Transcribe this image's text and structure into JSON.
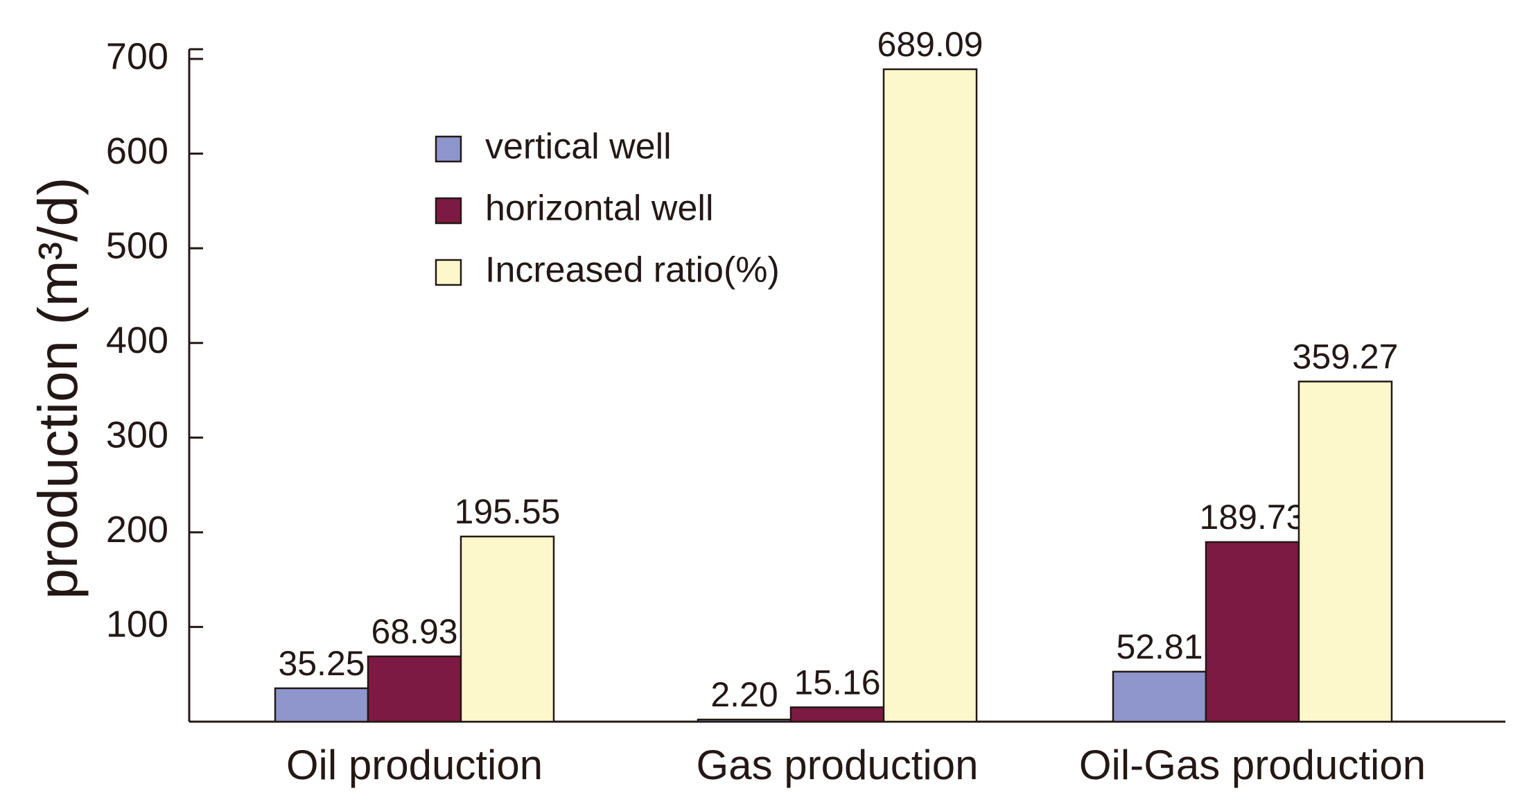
{
  "chart_data": {
    "type": "bar",
    "y_label": "production (m³/d)",
    "categories": [
      "Oil production",
      "Gas production",
      "Oil-Gas production"
    ],
    "series": [
      {
        "name": "vertical well",
        "color": "#8e96cc",
        "values": [
          35.25,
          2.2,
          52.81
        ],
        "value_labels": [
          "35.25",
          "2.20",
          "52.81"
        ]
      },
      {
        "name": "horizontal well",
        "color": "#7d1a44",
        "values": [
          68.93,
          15.16,
          189.73
        ]
      },
      {
        "name": "Increased ratio(%)",
        "color": "#fdf8cc",
        "values": [
          195.55,
          689.09,
          359.27
        ]
      }
    ],
    "ylim": [
      0,
      700
    ],
    "yticks": [
      100,
      200,
      300,
      400,
      500,
      600,
      700
    ],
    "grid": false
  }
}
